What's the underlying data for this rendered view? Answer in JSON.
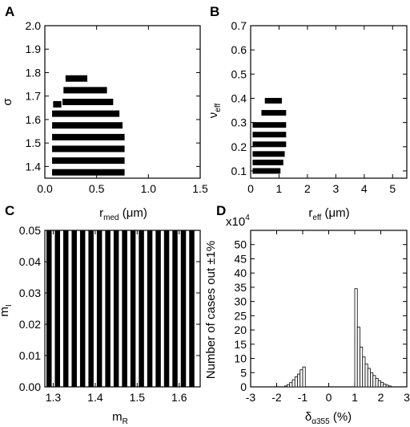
{
  "chart_data": [
    {
      "panel": "A",
      "type": "bar",
      "xlabel": "r",
      "xlabel_sub": "med",
      "xlabel_unit": " (μm)",
      "ylabel": "σ",
      "xlim": [
        0,
        1.5
      ],
      "ylim": [
        1.35,
        2.0
      ],
      "xticks": [
        "0.0",
        "0.5",
        "1.0",
        "1.5"
      ],
      "yticks": [
        "1.4",
        "1.5",
        "1.6",
        "1.7",
        "1.8",
        "1.9",
        "2.0"
      ],
      "bars": [
        {
          "y": 1.775,
          "x0": 0.2,
          "x1": 0.41
        },
        {
          "y": 1.725,
          "x0": 0.18,
          "x1": 0.6
        },
        {
          "y": 1.675,
          "x0": 0.17,
          "x1": 0.66
        },
        {
          "y": 1.665,
          "x0": 0.08,
          "x1": 0.16
        },
        {
          "y": 1.625,
          "x0": 0.07,
          "x1": 0.72
        },
        {
          "y": 1.575,
          "x0": 0.07,
          "x1": 0.75
        },
        {
          "y": 1.525,
          "x0": 0.07,
          "x1": 0.77
        },
        {
          "y": 1.475,
          "x0": 0.07,
          "x1": 0.77
        },
        {
          "y": 1.425,
          "x0": 0.07,
          "x1": 0.77
        },
        {
          "y": 1.375,
          "x0": 0.07,
          "x1": 0.77
        }
      ]
    },
    {
      "panel": "B",
      "type": "bar",
      "xlabel": "r",
      "xlabel_sub": "eff",
      "xlabel_unit": " (μm)",
      "ylabel": "ν",
      "ylabel_sub": "eff",
      "xlim": [
        0,
        5.5
      ],
      "ylim": [
        0.07,
        0.7
      ],
      "xticks": [
        "0",
        "1",
        "2",
        "3",
        "4",
        "5"
      ],
      "yticks": [
        "0.1",
        "0.2",
        "0.3",
        "0.4",
        "0.5",
        "0.6",
        "0.7"
      ],
      "bars": [
        {
          "y": 0.39,
          "x0": 0.5,
          "x1": 1.1
        },
        {
          "y": 0.34,
          "x0": 0.38,
          "x1": 1.25
        },
        {
          "y": 0.29,
          "x0": 0.07,
          "x1": 1.25
        },
        {
          "y": 0.25,
          "x0": 0.07,
          "x1": 1.25
        },
        {
          "y": 0.21,
          "x0": 0.07,
          "x1": 1.25
        },
        {
          "y": 0.17,
          "x0": 0.07,
          "x1": 1.2
        },
        {
          "y": 0.135,
          "x0": 0.07,
          "x1": 1.15
        },
        {
          "y": 0.1,
          "x0": 0.07,
          "x1": 1.05
        }
      ]
    },
    {
      "panel": "C",
      "type": "bar",
      "xlabel": "m",
      "xlabel_sub": "R",
      "ylabel": "m",
      "ylabel_sub": "I",
      "xlim": [
        1.28,
        1.65
      ],
      "ylim": [
        0.0,
        0.05
      ],
      "xticks": [
        "1.3",
        "1.4",
        "1.5",
        "1.6"
      ],
      "yticks": [
        "0.00",
        "0.01",
        "0.02",
        "0.03",
        "0.04",
        "0.05"
      ],
      "columns_x": [
        1.29,
        1.31,
        1.33,
        1.35,
        1.37,
        1.39,
        1.41,
        1.43,
        1.45,
        1.47,
        1.49,
        1.51,
        1.53,
        1.55,
        1.57,
        1.59,
        1.61,
        1.63
      ],
      "column_y_range": [
        0.0,
        0.05
      ]
    },
    {
      "panel": "D",
      "type": "bar",
      "xlabel": "δ",
      "xlabel_sub": "α355",
      "xlabel_unit": " (%)",
      "ylabel": "Number of cases out ±1%",
      "multiplier": "x10",
      "multiplier_exp": "4",
      "xlim": [
        -3,
        3
      ],
      "ylim": [
        0,
        55
      ],
      "xticks": [
        "-3",
        "-2",
        "-1",
        "0",
        "1",
        "2",
        "3"
      ],
      "yticks": [
        "0",
        "5",
        "10",
        "15",
        "20",
        "25",
        "30",
        "35",
        "40",
        "45",
        "50"
      ],
      "bin_width": 0.1,
      "bins": [
        {
          "x": -1.7,
          "v": 0.3
        },
        {
          "x": -1.6,
          "v": 0.8
        },
        {
          "x": -1.5,
          "v": 1.5
        },
        {
          "x": -1.4,
          "v": 2.5
        },
        {
          "x": -1.3,
          "v": 3.5
        },
        {
          "x": -1.2,
          "v": 4.5
        },
        {
          "x": -1.1,
          "v": 6.0
        },
        {
          "x": -1.0,
          "v": 7.0
        },
        {
          "x": 1.0,
          "v": 34.5
        },
        {
          "x": 1.1,
          "v": 21.0
        },
        {
          "x": 1.2,
          "v": 14.0
        },
        {
          "x": 1.3,
          "v": 10.5
        },
        {
          "x": 1.4,
          "v": 8.0
        },
        {
          "x": 1.5,
          "v": 6.5
        },
        {
          "x": 1.6,
          "v": 5.0
        },
        {
          "x": 1.7,
          "v": 4.0
        },
        {
          "x": 1.8,
          "v": 3.0
        },
        {
          "x": 1.9,
          "v": 2.2
        },
        {
          "x": 2.0,
          "v": 1.6
        },
        {
          "x": 2.1,
          "v": 1.0
        },
        {
          "x": 2.2,
          "v": 0.6
        },
        {
          "x": 2.3,
          "v": 0.3
        }
      ]
    }
  ]
}
